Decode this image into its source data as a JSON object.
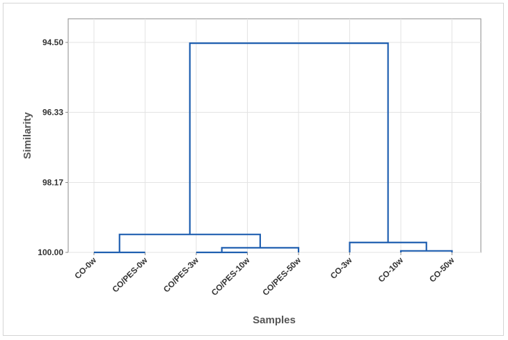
{
  "chart_data": {
    "type": "dendrogram",
    "title": "",
    "xlabel": "Samples",
    "ylabel": "Similarity",
    "ylim": [
      94.5,
      100.0
    ],
    "y_axis_inverted": true,
    "y_ticks": [
      "94.50",
      "96.33",
      "98.17",
      "100.00"
    ],
    "grid": true,
    "categories": [
      "CO-0w",
      "CO/PES-0w",
      "CO/PES-3w",
      "CO/PES-10w",
      "CO/PES-50w",
      "CO-3w",
      "CO-10w",
      "CO-50w"
    ],
    "merges": [
      {
        "left": 0,
        "right": 1,
        "similarity": 100.0
      },
      {
        "left": 2,
        "right": 3,
        "similarity": 100.0
      },
      {
        "left": "m1",
        "right": 4,
        "similarity": 99.88
      },
      {
        "left": "m0",
        "right": "m2",
        "similarity": 99.53
      },
      {
        "left": 6,
        "right": 7,
        "similarity": 99.96
      },
      {
        "left": 5,
        "right": "m4",
        "similarity": 99.74
      },
      {
        "left": "m3",
        "right": "m5",
        "similarity": 94.52
      }
    ],
    "line_color": "#1f5fb0"
  }
}
